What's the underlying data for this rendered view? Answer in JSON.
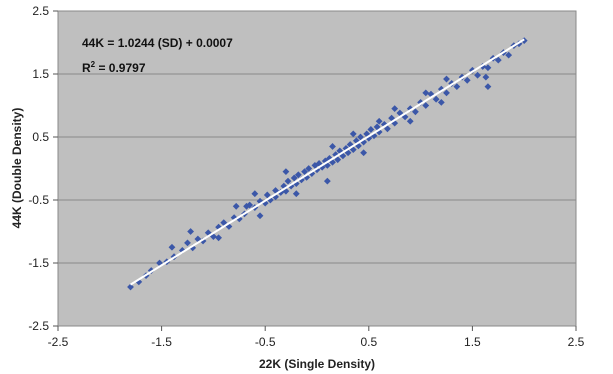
{
  "chart_data": {
    "type": "scatter",
    "xlabel": "22K (Single Density)",
    "ylabel": "44K (Double Density)",
    "xlim": [
      -2.5,
      2.5
    ],
    "ylim": [
      -2.5,
      2.5
    ],
    "xticks": [
      "-2.5",
      "-1.5",
      "-0.5",
      "0.5",
      "1.5",
      "2.5"
    ],
    "yticks": [
      "2.5",
      "1.5",
      "0.5",
      "-0.5",
      "-1.5",
      "-2.5"
    ],
    "grid": true,
    "marker_color": "#3b57a8",
    "plot_background": "#bfbfbf",
    "trendline": {
      "slope": 1.0244,
      "intercept": 0.0007,
      "x_range": [
        -1.8,
        2.0
      ],
      "color": "#ffffff"
    },
    "annotations": {
      "equation": "44K = 1.0244 (SD) + 0.0007",
      "r2_prefix": "R",
      "r2_sup": "2",
      "r2_suffix": " = 0.9797"
    },
    "points": [
      [
        -1.8,
        -1.88
      ],
      [
        -1.72,
        -1.8
      ],
      [
        -1.65,
        -1.7
      ],
      [
        -1.6,
        -1.62
      ],
      [
        -1.52,
        -1.5
      ],
      [
        -1.45,
        -1.48
      ],
      [
        -1.38,
        -1.4
      ],
      [
        -1.3,
        -1.3
      ],
      [
        -1.25,
        -1.18
      ],
      [
        -1.2,
        -1.26
      ],
      [
        -1.15,
        -1.12
      ],
      [
        -1.1,
        -1.15
      ],
      [
        -1.05,
        -1.02
      ],
      [
        -1.0,
        -1.08
      ],
      [
        -0.95,
        -0.93
      ],
      [
        -0.9,
        -0.86
      ],
      [
        -0.85,
        -0.92
      ],
      [
        -0.8,
        -0.78
      ],
      [
        -0.75,
        -0.8
      ],
      [
        -0.7,
        -0.72
      ],
      [
        -0.68,
        -0.6
      ],
      [
        -0.65,
        -0.58
      ],
      [
        -0.6,
        -0.62
      ],
      [
        -0.55,
        -0.52
      ],
      [
        -0.5,
        -0.55
      ],
      [
        -0.48,
        -0.42
      ],
      [
        -0.45,
        -0.5
      ],
      [
        -0.4,
        -0.35
      ],
      [
        -0.4,
        -0.45
      ],
      [
        -0.35,
        -0.38
      ],
      [
        -0.32,
        -0.28
      ],
      [
        -0.3,
        -0.36
      ],
      [
        -0.28,
        -0.2
      ],
      [
        -0.25,
        -0.28
      ],
      [
        -0.22,
        -0.15
      ],
      [
        -0.2,
        -0.24
      ],
      [
        -0.18,
        -0.1
      ],
      [
        -0.15,
        -0.18
      ],
      [
        -0.12,
        -0.05
      ],
      [
        -0.1,
        -0.14
      ],
      [
        -0.08,
        0.0
      ],
      [
        -0.05,
        -0.08
      ],
      [
        -0.02,
        0.05
      ],
      [
        0.0,
        -0.02
      ],
      [
        0.02,
        0.08
      ],
      [
        0.05,
        0.02
      ],
      [
        0.08,
        0.12
      ],
      [
        0.1,
        0.05
      ],
      [
        0.12,
        0.16
      ],
      [
        0.15,
        0.1
      ],
      [
        0.18,
        0.22
      ],
      [
        0.2,
        0.14
      ],
      [
        0.22,
        0.28
      ],
      [
        0.25,
        0.2
      ],
      [
        0.28,
        0.32
      ],
      [
        0.3,
        0.25
      ],
      [
        0.32,
        0.38
      ],
      [
        0.35,
        0.3
      ],
      [
        0.38,
        0.44
      ],
      [
        0.4,
        0.36
      ],
      [
        0.42,
        0.5
      ],
      [
        0.45,
        0.42
      ],
      [
        0.48,
        0.55
      ],
      [
        0.5,
        0.48
      ],
      [
        0.52,
        0.62
      ],
      [
        0.55,
        0.52
      ],
      [
        0.58,
        0.66
      ],
      [
        0.6,
        0.58
      ],
      [
        0.65,
        0.7
      ],
      [
        0.68,
        0.63
      ],
      [
        0.72,
        0.8
      ],
      [
        0.75,
        0.72
      ],
      [
        0.8,
        0.88
      ],
      [
        0.85,
        0.82
      ],
      [
        0.9,
        0.95
      ],
      [
        0.95,
        0.9
      ],
      [
        1.0,
        1.05
      ],
      [
        1.05,
        1.0
      ],
      [
        1.1,
        1.18
      ],
      [
        1.15,
        1.1
      ],
      [
        1.2,
        1.26
      ],
      [
        1.25,
        1.2
      ],
      [
        1.3,
        1.35
      ],
      [
        1.35,
        1.3
      ],
      [
        1.4,
        1.45
      ],
      [
        1.45,
        1.4
      ],
      [
        1.5,
        1.56
      ],
      [
        1.55,
        1.48
      ],
      [
        1.6,
        1.62
      ],
      [
        1.65,
        1.6
      ],
      [
        1.7,
        1.75
      ],
      [
        1.75,
        1.72
      ],
      [
        1.8,
        1.84
      ],
      [
        1.85,
        1.8
      ],
      [
        1.9,
        1.95
      ],
      [
        1.95,
        1.98
      ],
      [
        2.0,
        2.03
      ],
      [
        1.63,
        1.45
      ],
      [
        1.65,
        1.3
      ],
      [
        1.2,
        1.05
      ],
      [
        1.25,
        1.42
      ],
      [
        -0.78,
        -0.6
      ],
      [
        -1.22,
        -1.0
      ],
      [
        0.35,
        0.55
      ],
      [
        -0.55,
        -0.75
      ],
      [
        0.75,
        0.95
      ],
      [
        -0.3,
        -0.05
      ],
      [
        0.1,
        -0.2
      ],
      [
        -0.6,
        -0.4
      ],
      [
        0.6,
        0.75
      ],
      [
        0.15,
        0.35
      ],
      [
        -0.2,
        -0.4
      ],
      [
        0.45,
        0.25
      ],
      [
        1.05,
        1.2
      ],
      [
        -0.95,
        -1.1
      ],
      [
        0.9,
        0.75
      ],
      [
        -1.4,
        -1.25
      ]
    ]
  }
}
